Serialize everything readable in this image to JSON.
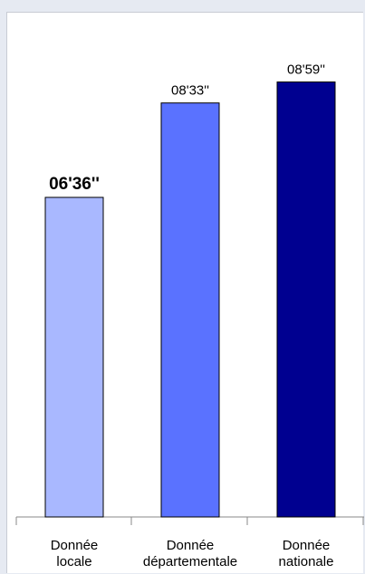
{
  "chart_data": {
    "type": "bar",
    "title": "",
    "xlabel": "",
    "ylabel": "",
    "categories": [
      [
        "Donnée",
        "locale"
      ],
      [
        "Donnée",
        "départementale"
      ],
      [
        "Donnée",
        "nationale"
      ]
    ],
    "values": [
      396,
      513,
      539
    ],
    "value_labels": [
      "06'36''",
      "08'33''",
      "08'59''"
    ],
    "highlight_index": 0,
    "colors": [
      "#a9b8ff",
      "#5a72ff",
      "#000090"
    ],
    "ylim": [
      0,
      580
    ],
    "grid": false,
    "legend": "none"
  }
}
